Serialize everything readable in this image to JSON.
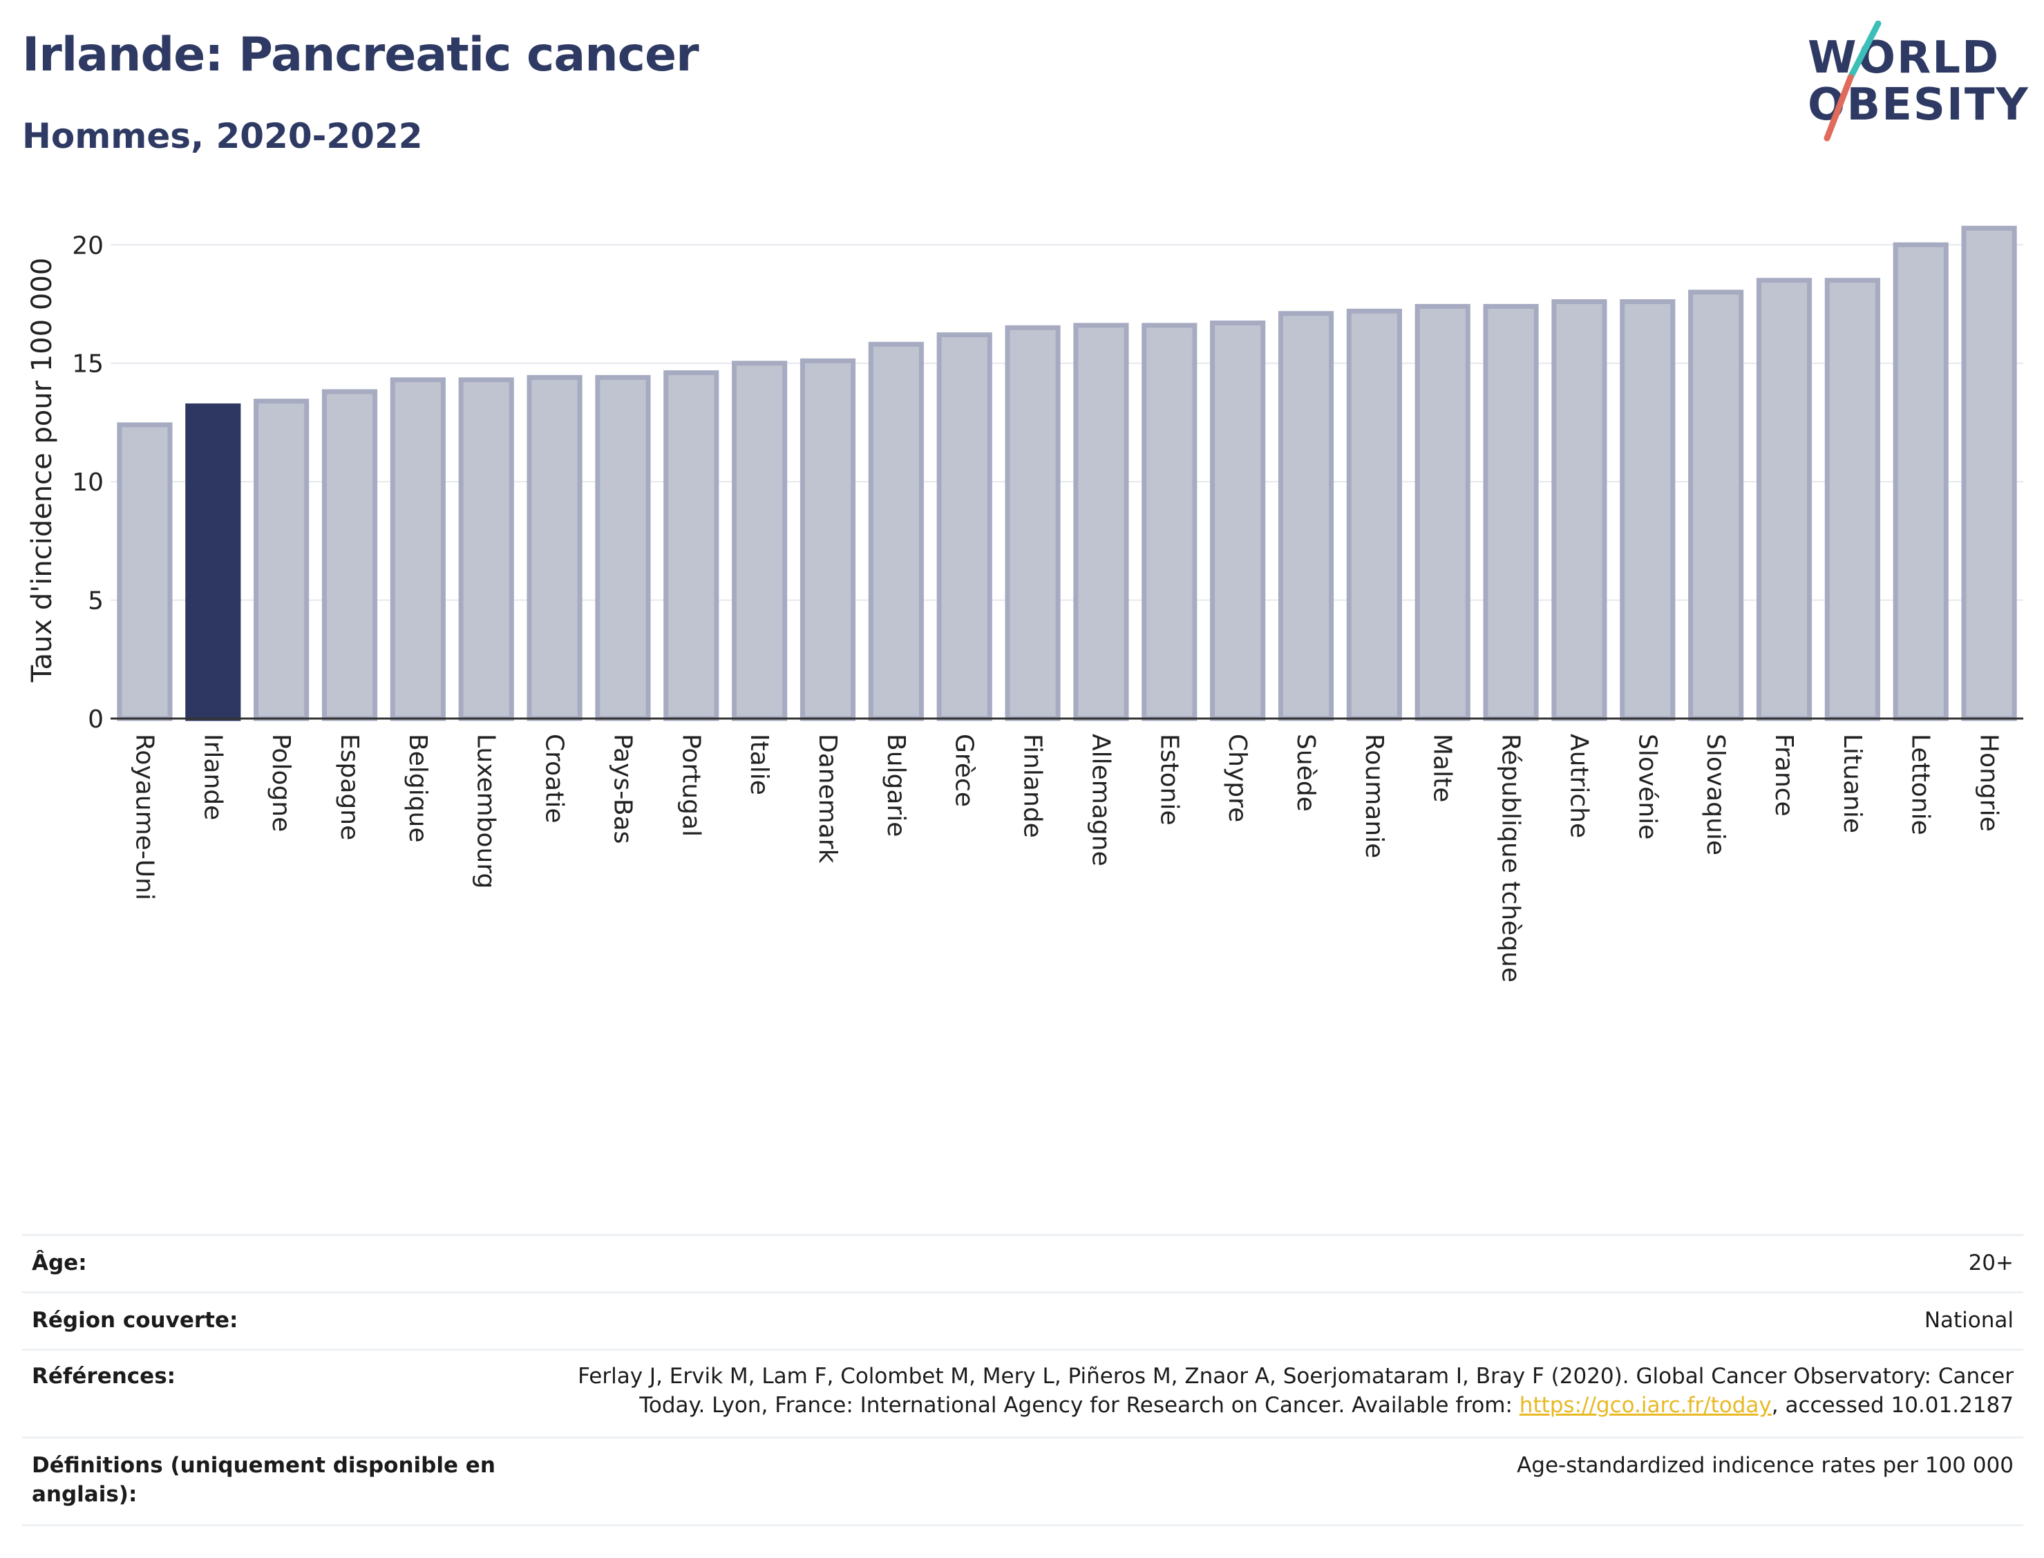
{
  "header": {
    "title": "Irlande: Pancreatic cancer",
    "subtitle": "Hommes, 2020-2022"
  },
  "logo": {
    "line1": "WORLD",
    "line2": "OBESITY"
  },
  "colors": {
    "highlight": "#2e3762",
    "bar_fill": "#c0c4d1",
    "bar_stroke": "#a6abc1",
    "grid": "#e6e9ee",
    "title": "#2e3a63",
    "link": "#e8b923",
    "logo_teal": "#3bbfb8",
    "logo_coral": "#e06a5c"
  },
  "chart_data": {
    "type": "bar",
    "ylabel": "Taux d'incidence pour 100 000",
    "ylim": [
      0,
      21
    ],
    "yticks": [
      0,
      5,
      10,
      15,
      20
    ],
    "grid": true,
    "highlight": "Irlande",
    "categories": [
      "Royaume-Uni",
      "Irlande",
      "Pologne",
      "Espagne",
      "Belgique",
      "Luxembourg",
      "Croatie",
      "Pays-Bas",
      "Portugal",
      "Italie",
      "Danemark",
      "Bulgarie",
      "Grèce",
      "Finlande",
      "Allemagne",
      "Estonie",
      "Chypre",
      "Suède",
      "Roumanie",
      "Malte",
      "République tchèque",
      "Autriche",
      "Slovénie",
      "Slovaquie",
      "France",
      "Lituanie",
      "Lettonie",
      "Hongrie"
    ],
    "values": [
      12.4,
      13.2,
      13.4,
      13.8,
      14.3,
      14.3,
      14.4,
      14.4,
      14.6,
      15.0,
      15.1,
      15.8,
      16.2,
      16.5,
      16.6,
      16.6,
      16.7,
      17.1,
      17.2,
      17.4,
      17.4,
      17.6,
      17.6,
      18.0,
      18.5,
      18.5,
      20.0,
      20.7
    ]
  },
  "meta": {
    "age_label": "Âge:",
    "age_value": "20+",
    "region_label": "Région couverte:",
    "region_value": "National",
    "refs_label": "Références:",
    "refs_line1": "Ferlay J, Ervik M, Lam F, Colombet M, Mery L, Piñeros M, Znaor A, Soerjomataram I, Bray F (2020). Global Cancer Observatory: Cancer",
    "refs_line2_pre": "Today. Lyon, France: International Agency for Research on Cancer. Available from: ",
    "refs_link": "https://gco.iarc.fr/today",
    "refs_line2_post": ", accessed 10.01.2187",
    "defs_label": "Définitions (uniquement disponible en anglais):",
    "defs_value": "Age-standardized indicence rates per 100 000"
  }
}
